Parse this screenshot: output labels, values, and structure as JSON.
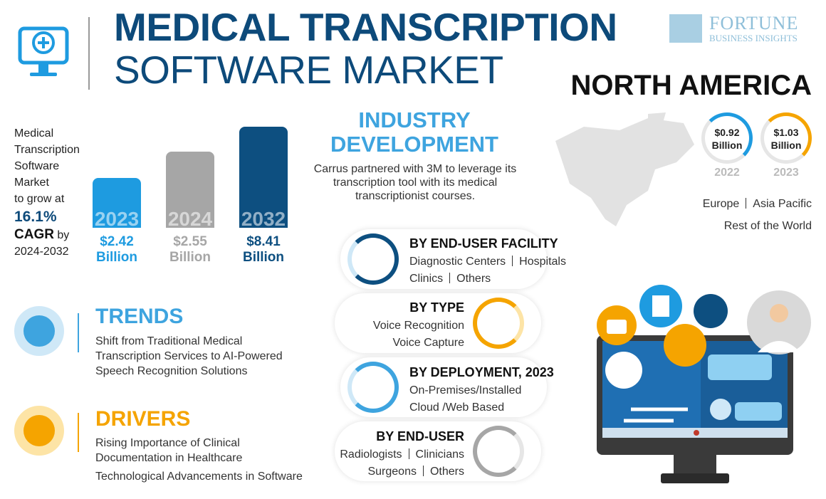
{
  "header": {
    "title_line1": "MEDICAL TRANSCRIPTION",
    "title_line2": "SOFTWARE MARKET",
    "brand": "FORTUNE",
    "brand_sub": "BUSINESS INSIGHTS"
  },
  "growth": {
    "lines": [
      "Medical",
      "Transcription",
      "Software",
      "Market",
      "to grow at"
    ],
    "cagr": "16.1%",
    "cagr_label": "CAGR",
    "by": "by",
    "period": "2024-2032"
  },
  "bars": [
    {
      "year": "2023",
      "value": "$2.42",
      "unit": "Billion"
    },
    {
      "year": "2024",
      "value": "$2.55",
      "unit": "Billion"
    },
    {
      "year": "2032",
      "value": "$8.41",
      "unit": "Billion"
    }
  ],
  "industry": {
    "title_line1": "INDUSTRY",
    "title_line2": "DEVELOPMENT",
    "text": "Carrus partnered with 3M to leverage its transcription tool with its medical transcriptionist courses."
  },
  "region": {
    "title": "NORTH AMERICA",
    "stats": [
      {
        "value": "$0.92",
        "unit": "Billion",
        "year": "2022"
      },
      {
        "value": "$1.03",
        "unit": "Billion",
        "year": "2023"
      }
    ],
    "others": [
      "Europe",
      "Asia Pacific",
      "Rest of the World"
    ]
  },
  "trends": {
    "title": "TRENDS",
    "text": "Shift from Traditional Medical Transcription Services to AI-Powered Speech Recognition Solutions"
  },
  "drivers": {
    "title": "DRIVERS",
    "items": [
      "Rising Importance of Clinical Documentation in Healthcare",
      "Technological Advancements in Software"
    ]
  },
  "segments": [
    {
      "title": "BY END-USER FACILITY",
      "lines": [
        [
          "Diagnostic Centers",
          "Hospitals"
        ],
        [
          "Clinics",
          "Others"
        ]
      ]
    },
    {
      "title": "BY TYPE",
      "lines": [
        [
          "Voice Recognition"
        ],
        [
          "Voice Capture"
        ]
      ]
    },
    {
      "title": "BY DEPLOYMENT, 2023",
      "lines": [
        [
          "On-Premises/Installed"
        ],
        [
          "Cloud /Web Based"
        ]
      ]
    },
    {
      "title": "BY END-USER",
      "lines": [
        [
          "Radiologists",
          "Clinicians"
        ],
        [
          "Surgeons",
          "Others"
        ]
      ]
    }
  ]
}
